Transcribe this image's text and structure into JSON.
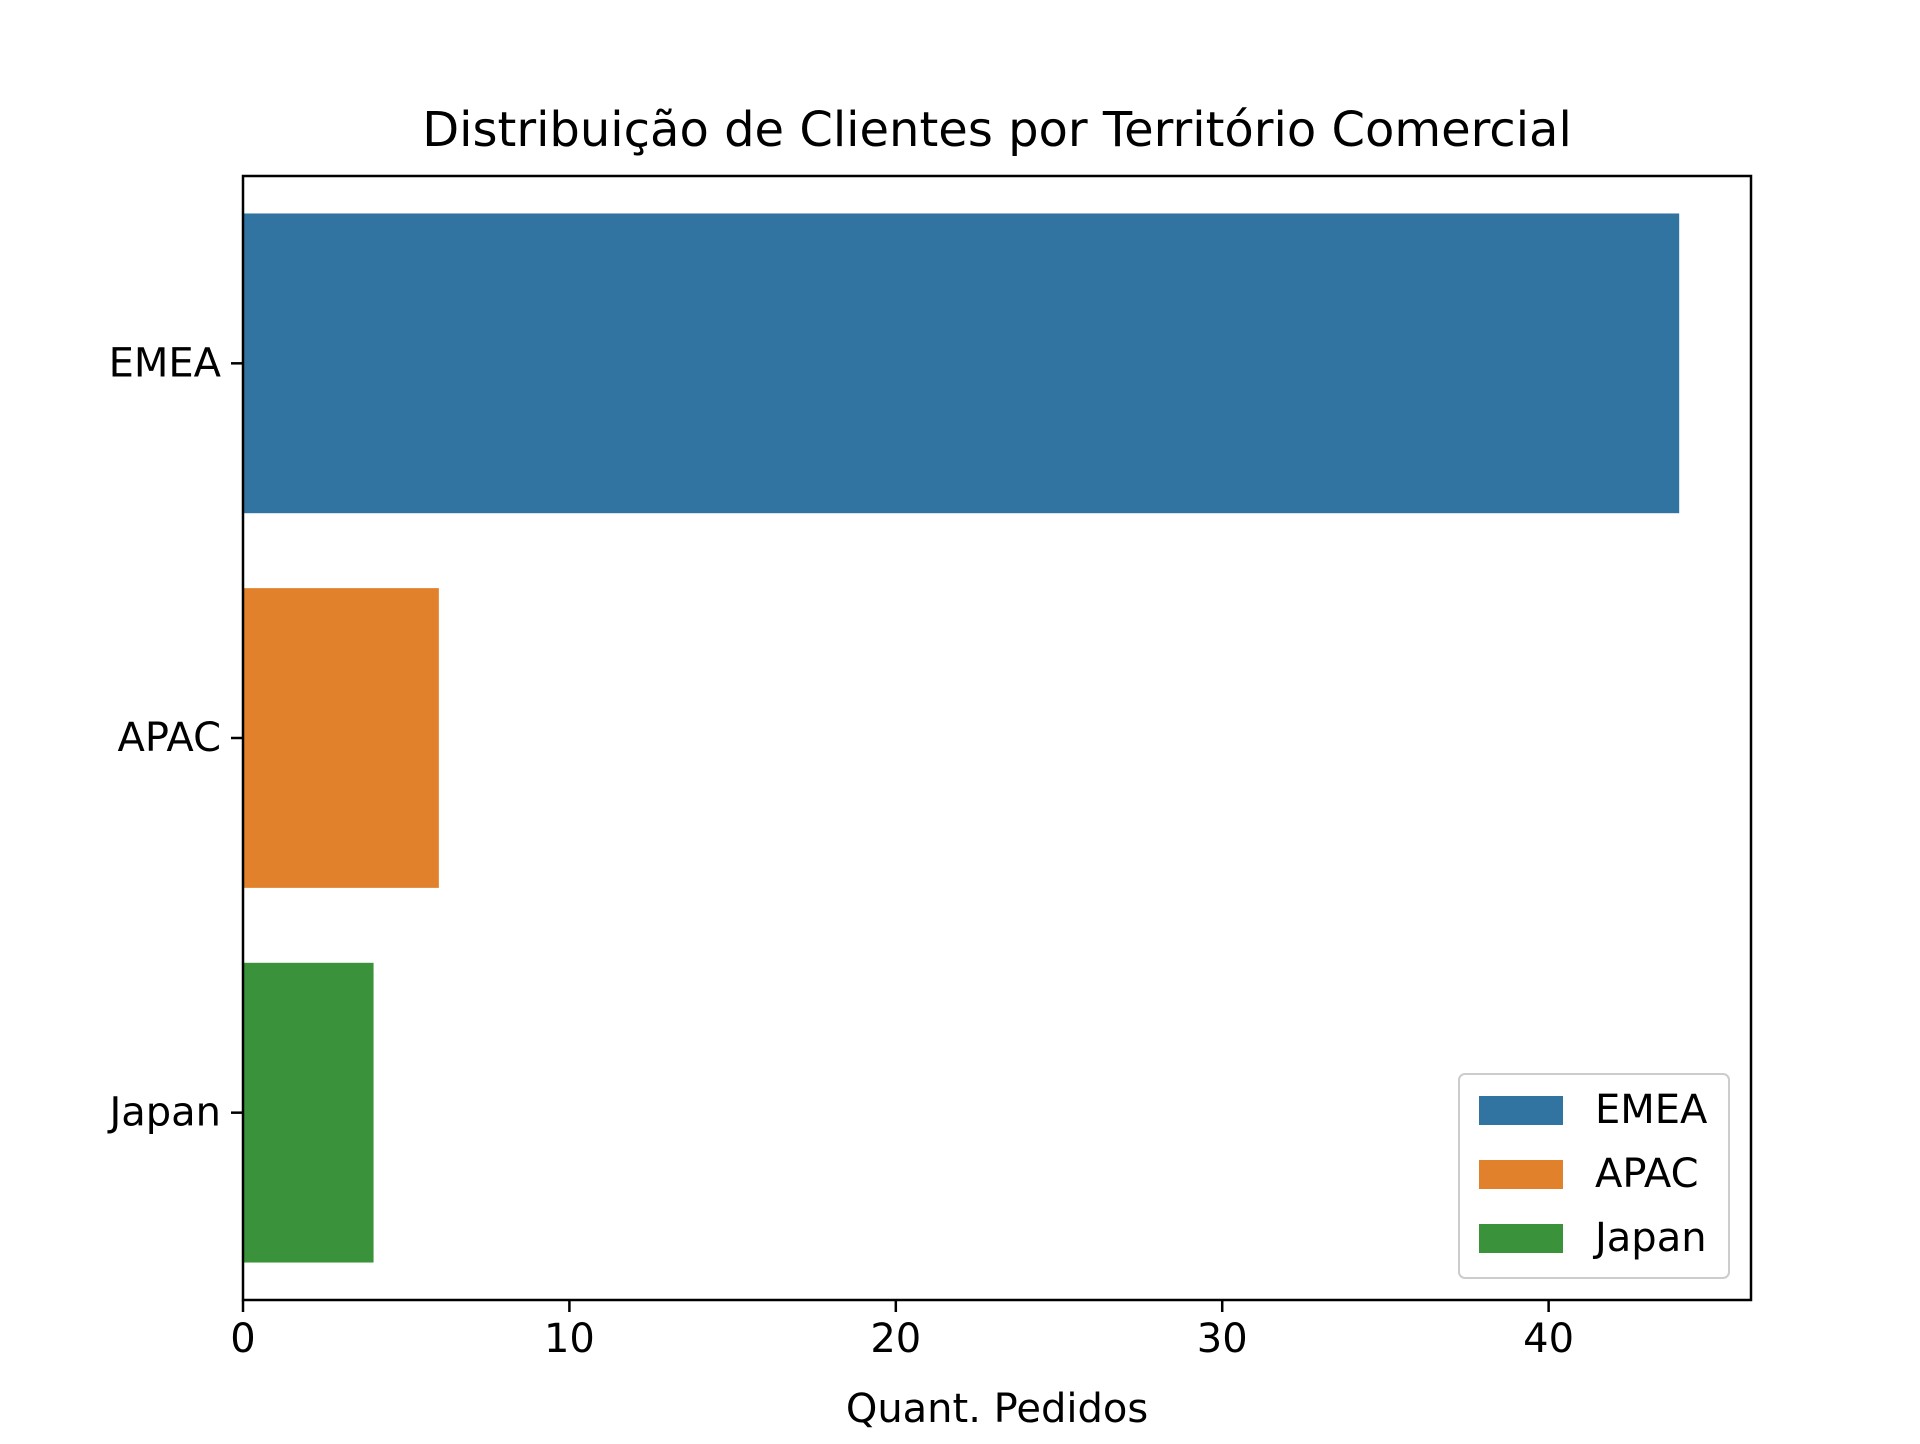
{
  "chart_data": {
    "type": "bar",
    "orientation": "horizontal",
    "title": "Distribuição de Clientes por Território Comercial",
    "xlabel": "Quant. Pedidos",
    "ylabel": "",
    "categories": [
      "EMEA",
      "APAC",
      "Japan"
    ],
    "values": [
      44,
      6,
      4
    ],
    "colors": [
      "#3274a1",
      "#e1812c",
      "#3a923a"
    ],
    "xlim": [
      0,
      46.2
    ],
    "xticks": [
      0,
      10,
      20,
      30,
      40
    ],
    "grid": false,
    "legend": {
      "placement": "lower-right",
      "entries": [
        "EMEA",
        "APAC",
        "Japan"
      ]
    }
  }
}
